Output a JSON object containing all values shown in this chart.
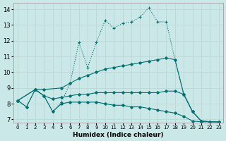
{
  "xlabel": "Humidex (Indice chaleur)",
  "background_color": "#cbe8e8",
  "grid_color": "#c0d8d8",
  "line_color": "#007070",
  "xlim": [
    -0.5,
    23.5
  ],
  "ylim": [
    6.8,
    14.4
  ],
  "yticks": [
    7,
    8,
    9,
    10,
    11,
    12,
    13,
    14
  ],
  "xticks": [
    0,
    1,
    2,
    3,
    4,
    5,
    6,
    7,
    8,
    9,
    10,
    11,
    12,
    13,
    14,
    15,
    16,
    17,
    18,
    19,
    20,
    21,
    22,
    23
  ],
  "line1_x": [
    0,
    1,
    2,
    3,
    4,
    5,
    6,
    7,
    8,
    9,
    10,
    11,
    12,
    13,
    14,
    15,
    16,
    17,
    18,
    19,
    20,
    21,
    22,
    23
  ],
  "line1_y": [
    8.2,
    7.8,
    8.9,
    8.5,
    7.5,
    8.1,
    9.3,
    11.9,
    10.3,
    11.9,
    13.3,
    12.8,
    13.1,
    13.2,
    13.5,
    14.1,
    13.2,
    13.2,
    10.8,
    8.6,
    7.5,
    6.9,
    6.85,
    6.85
  ],
  "line2_x": [
    0,
    2,
    3,
    5,
    6,
    7,
    8,
    9,
    10,
    11,
    12,
    13,
    14,
    15,
    16,
    17,
    18,
    19,
    20,
    21,
    22,
    23
  ],
  "line2_y": [
    8.2,
    8.9,
    8.9,
    9.0,
    9.3,
    9.6,
    9.8,
    10.0,
    10.2,
    10.3,
    10.4,
    10.5,
    10.6,
    10.7,
    10.8,
    10.9,
    10.8,
    8.6,
    7.5,
    6.9,
    6.85,
    6.85
  ],
  "line3_x": [
    0,
    2,
    3,
    4,
    5,
    6,
    7,
    8,
    9,
    10,
    11,
    12,
    13,
    14,
    15,
    16,
    17,
    18,
    19,
    20,
    21,
    22,
    23
  ],
  "line3_y": [
    8.2,
    8.9,
    8.5,
    8.3,
    8.4,
    8.5,
    8.6,
    8.6,
    8.7,
    8.7,
    8.7,
    8.7,
    8.7,
    8.7,
    8.7,
    8.7,
    8.8,
    8.8,
    8.6,
    7.5,
    6.9,
    6.85,
    6.85
  ],
  "line4_x": [
    0,
    1,
    2,
    3,
    4,
    5,
    6,
    7,
    8,
    9,
    10,
    11,
    12,
    13,
    14,
    15,
    16,
    17,
    18,
    19,
    20,
    21,
    22,
    23
  ],
  "line4_y": [
    8.2,
    7.8,
    8.9,
    8.5,
    7.5,
    8.0,
    8.1,
    8.1,
    8.1,
    8.1,
    8.0,
    7.9,
    7.9,
    7.8,
    7.8,
    7.7,
    7.6,
    7.5,
    7.4,
    7.2,
    6.9,
    6.85,
    6.85,
    6.85
  ]
}
